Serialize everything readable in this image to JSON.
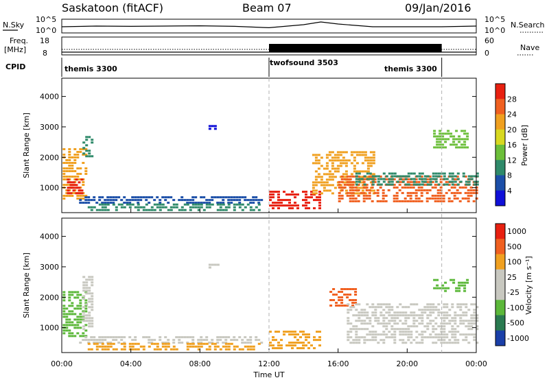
{
  "header": {
    "station": "Saskatoon (fitACF)",
    "beam": "Beam 07",
    "date": "09/Jan/2016"
  },
  "colors": {
    "power_scale": [
      "#1010d8",
      "#1c4fa8",
      "#2f8a6a",
      "#6cbf3a",
      "#d8d820",
      "#f0a020",
      "#f06020",
      "#e82010"
    ],
    "velocity_scale": [
      "#1a3fa8",
      "#2a7a50",
      "#5cb83a",
      "#c8c8c0",
      "#c8c8c0",
      "#f0a020",
      "#f06020",
      "#e82010"
    ]
  },
  "chart_data": [
    {
      "type": "line",
      "name": "sky-noise-panel",
      "ylabel": "N.Sky",
      "right_label": "N.Search",
      "left_ticks": [
        "10^5",
        "10^0"
      ],
      "right_ticks": [
        "10^5",
        "10^0"
      ],
      "x": [
        0,
        2,
        4,
        6,
        8,
        10,
        12,
        14,
        15,
        16,
        18,
        20,
        22,
        24
      ],
      "y": [
        0.55,
        0.5,
        0.52,
        0.5,
        0.48,
        0.52,
        0.62,
        0.4,
        0.2,
        0.35,
        0.55,
        0.55,
        0.55,
        0.5
      ]
    },
    {
      "type": "line",
      "name": "frequency-panel",
      "ylabel_line1": "Freq.",
      "ylabel_line2": "[MHz]",
      "right_label": "Nave",
      "left_ticks": [
        "18",
        "8"
      ],
      "right_ticks": [
        "60",
        "0"
      ],
      "nave_dense_range_hours": [
        12,
        22
      ]
    },
    {
      "type": "table",
      "name": "cpid-panel",
      "label": "CPID",
      "segments": [
        {
          "start": 0,
          "end": 12,
          "label": "themis 3300"
        },
        {
          "start": 12,
          "end": 22,
          "label": "twofsound 3503"
        },
        {
          "start": 22,
          "end": 24,
          "label": "themis 3300"
        }
      ]
    },
    {
      "type": "heatmap",
      "name": "power-panel",
      "ylabel": "Slant Range [km]",
      "yticks": [
        1000,
        2000,
        3000,
        4000
      ],
      "ylim": [
        180,
        4600
      ],
      "xlim": [
        0,
        24
      ],
      "colorbar_label": "Power [dB]",
      "colorbar_ticks": [
        "4",
        "8",
        "12",
        "16",
        "20",
        "24",
        "28"
      ],
      "regions": [
        {
          "x": [
            0.05,
            1.4
          ],
          "y": [
            600,
            2300
          ],
          "level": 5
        },
        {
          "x": [
            0.3,
            1.2
          ],
          "y": [
            800,
            1300
          ],
          "level": 7
        },
        {
          "x": [
            1.2,
            1.8
          ],
          "y": [
            1900,
            2700
          ],
          "level": 2
        },
        {
          "x": [
            1.0,
            11.5
          ],
          "y": [
            500,
            720
          ],
          "level": 1
        },
        {
          "x": [
            1.5,
            11.5
          ],
          "y": [
            250,
            480
          ],
          "level": 2
        },
        {
          "x": [
            8.5,
            9.0
          ],
          "y": [
            2950,
            3150
          ],
          "level": 0
        },
        {
          "x": [
            12.0,
            15.0
          ],
          "y": [
            300,
            900
          ],
          "level": 7
        },
        {
          "x": [
            14.5,
            18.0
          ],
          "y": [
            800,
            2200
          ],
          "level": 5
        },
        {
          "x": [
            16.0,
            24.0
          ],
          "y": [
            500,
            1400
          ],
          "level": 6
        },
        {
          "x": [
            17.0,
            24.0
          ],
          "y": [
            1100,
            1500
          ],
          "level": 2
        },
        {
          "x": [
            21.5,
            23.5
          ],
          "y": [
            2300,
            2900
          ],
          "level": 3
        }
      ]
    },
    {
      "type": "heatmap",
      "name": "velocity-panel",
      "ylabel": "Slant Range [km]",
      "yticks": [
        1000,
        2000,
        3000,
        4000
      ],
      "ylim": [
        180,
        4600
      ],
      "xlim": [
        0,
        24
      ],
      "xlabel": "Time UT",
      "xticks": [
        "00:00",
        "04:00",
        "08:00",
        "12:00",
        "16:00",
        "20:00",
        "00:00"
      ],
      "colorbar_label": "Velocity [m s⁻¹]",
      "colorbar_ticks": [
        "1000",
        "500",
        "100",
        "25",
        "-25",
        "-100",
        "-500",
        "-1000"
      ],
      "regions": [
        {
          "x": [
            0.05,
            1.4
          ],
          "y": [
            700,
            2200
          ],
          "level": 2
        },
        {
          "x": [
            1.2,
            1.8
          ],
          "y": [
            900,
            2700
          ],
          "level": 3
        },
        {
          "x": [
            1.0,
            11.5
          ],
          "y": [
            520,
            720
          ],
          "level": 3
        },
        {
          "x": [
            1.5,
            11.5
          ],
          "y": [
            300,
            500
          ],
          "level": 5
        },
        {
          "x": [
            8.5,
            9.0
          ],
          "y": [
            2950,
            3100
          ],
          "level": 3
        },
        {
          "x": [
            12.0,
            15.0
          ],
          "y": [
            300,
            900
          ],
          "level": 5
        },
        {
          "x": [
            15.5,
            17.0
          ],
          "y": [
            1700,
            2300
          ],
          "level": 6
        },
        {
          "x": [
            16.5,
            24.0
          ],
          "y": [
            500,
            1800
          ],
          "level": 3
        },
        {
          "x": [
            21.5,
            23.5
          ],
          "y": [
            2200,
            2600
          ],
          "level": 2
        }
      ]
    }
  ]
}
